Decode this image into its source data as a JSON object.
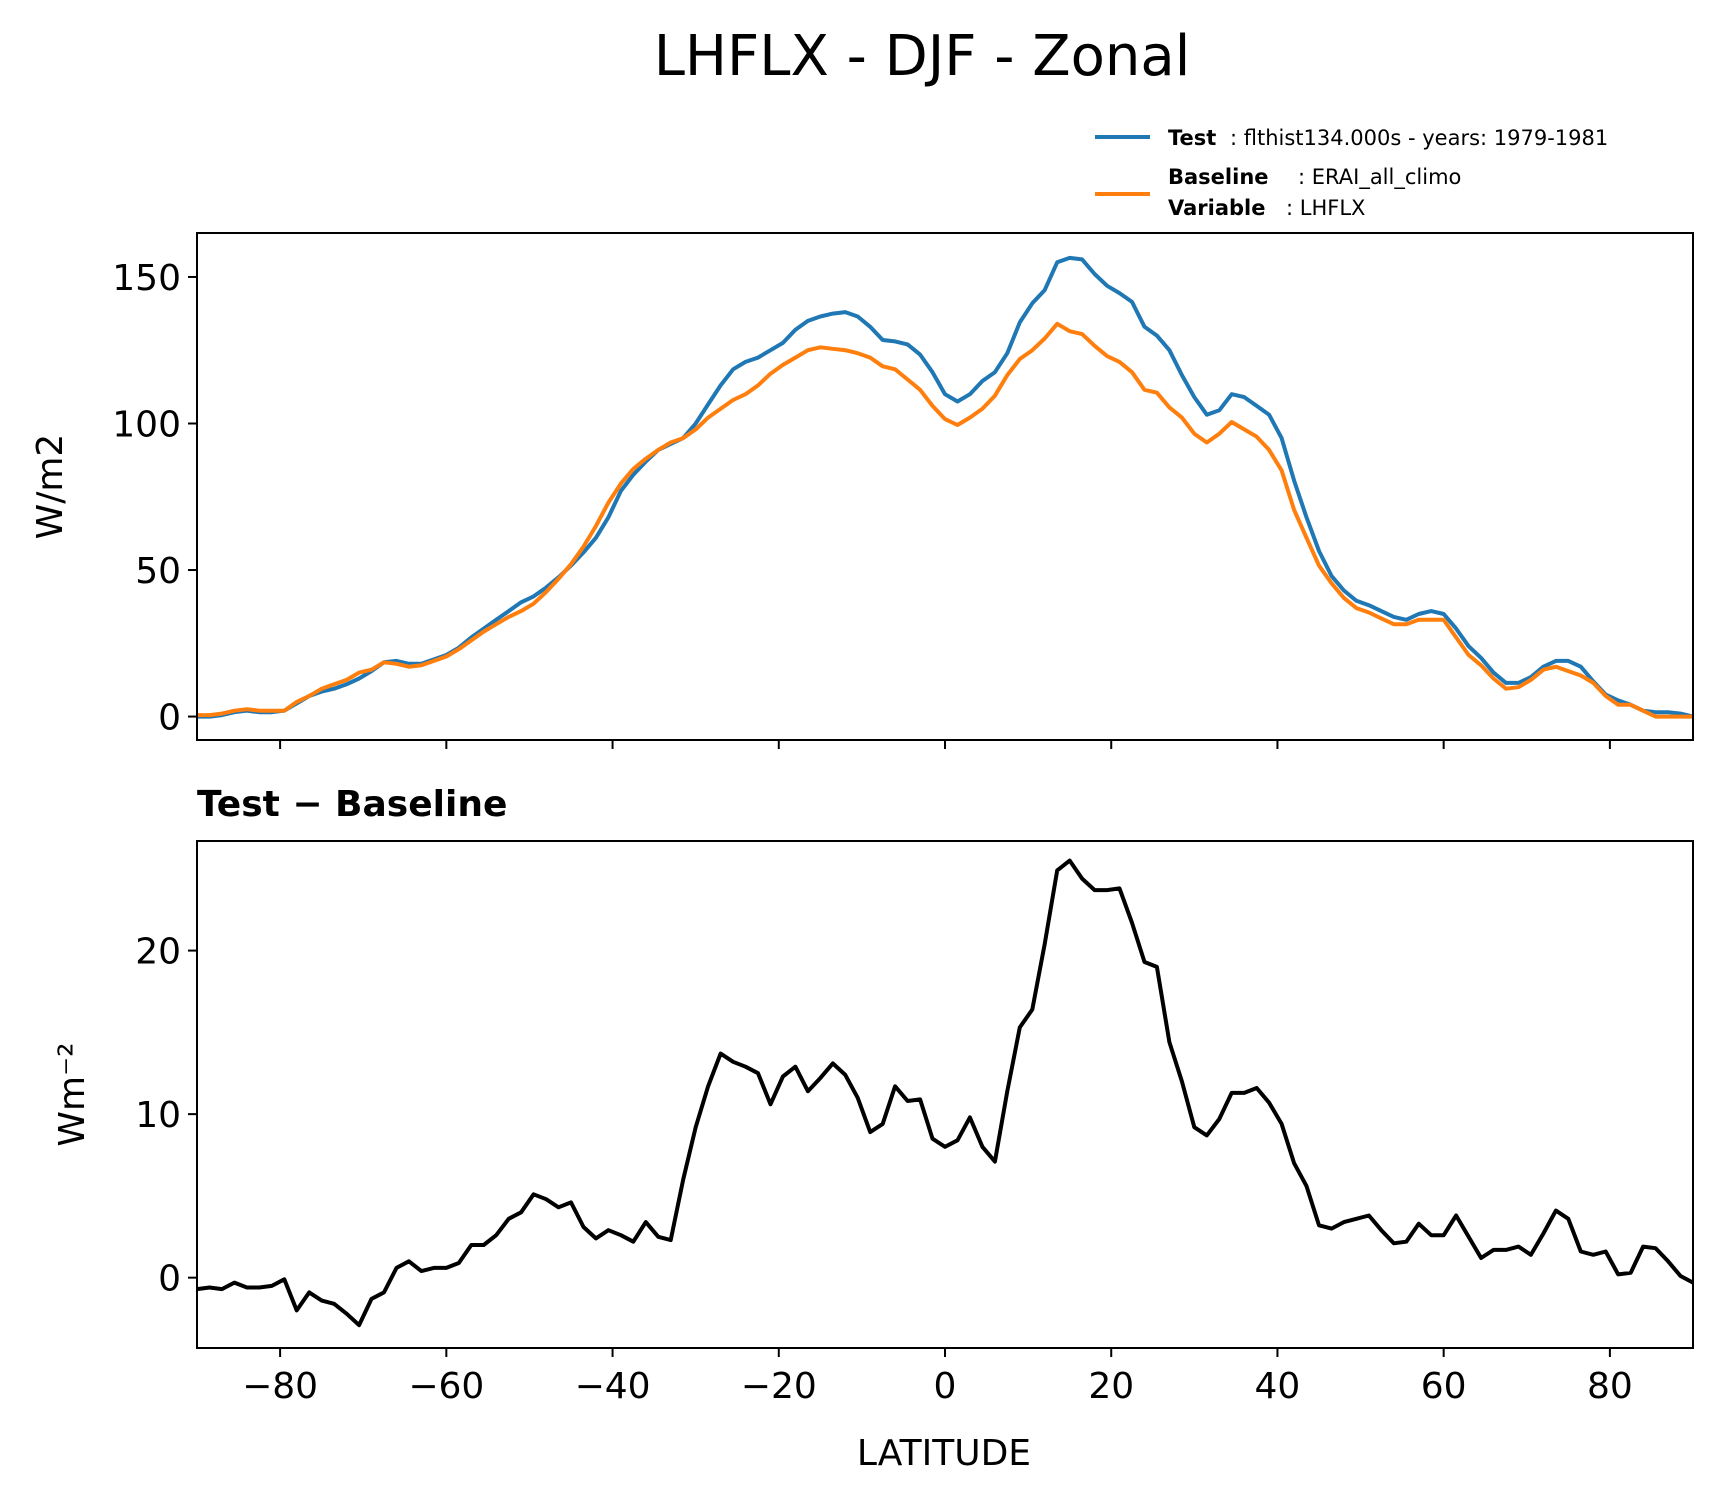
{
  "figure_title": "LHFLX - DJF - Zonal",
  "legend": [
    {
      "label": "Test",
      "text": ": flthist134.000s - years: 1979-1981",
      "color": "#1f77b4"
    },
    {
      "label": "Baseline",
      "text": ": ERAI_all_climo",
      "color": "#ff7f0e"
    },
    {
      "label": "Variable",
      "text": ": LHFLX"
    }
  ],
  "chart_data": [
    {
      "type": "line",
      "xlim": [
        -90,
        90
      ],
      "ylim": [
        -8,
        165
      ],
      "ylabel": "W/m2",
      "yticks": [
        0,
        50,
        100,
        150
      ],
      "xticks": [
        -80,
        -60,
        -40,
        -20,
        0,
        20,
        40,
        60,
        80
      ],
      "x": [
        -90.0,
        -88.5,
        -87.0,
        -85.5,
        -84.0,
        -82.5,
        -81.0,
        -79.5,
        -78.0,
        -76.5,
        -75.0,
        -73.5,
        -72.0,
        -70.5,
        -69.0,
        -67.5,
        -66.0,
        -64.5,
        -63.0,
        -61.5,
        -60.0,
        -58.5,
        -57.0,
        -55.5,
        -54.0,
        -52.5,
        -51.0,
        -49.5,
        -48.0,
        -46.5,
        -45.0,
        -43.5,
        -42.0,
        -40.5,
        -39.0,
        -37.5,
        -36.0,
        -34.5,
        -33.0,
        -31.5,
        -30.0,
        -28.5,
        -27.0,
        -25.5,
        -24.0,
        -22.5,
        -21.0,
        -19.5,
        -18.0,
        -16.5,
        -15.0,
        -13.5,
        -12.0,
        -10.5,
        -9.0,
        -7.5,
        -6.0,
        -4.5,
        -3.0,
        -1.5,
        0.0,
        1.5,
        3.0,
        4.5,
        6.0,
        7.5,
        9.0,
        10.5,
        12.0,
        13.5,
        15.0,
        16.5,
        18.0,
        19.5,
        21.0,
        22.5,
        24.0,
        25.5,
        27.0,
        28.5,
        30.0,
        31.5,
        33.0,
        34.5,
        36.0,
        37.5,
        39.0,
        40.5,
        42.0,
        43.5,
        45.0,
        46.5,
        48.0,
        49.5,
        51.0,
        52.5,
        54.0,
        55.5,
        57.0,
        58.5,
        60.0,
        61.5,
        63.0,
        64.5,
        66.0,
        67.5,
        69.0,
        70.5,
        72.0,
        73.5,
        75.0,
        76.5,
        78.0,
        79.5,
        81.0,
        82.5,
        84.0,
        85.5,
        87.0,
        88.5,
        90.0
      ],
      "series": [
        {
          "name": "Test",
          "color": "#1f77b4",
          "values": [
            0.0,
            0.0,
            0.5,
            1.5,
            2.0,
            1.5,
            1.5,
            2.0,
            4.5,
            7.0,
            8.5,
            9.5,
            11.0,
            13.0,
            15.5,
            18.5,
            19.0,
            18.0,
            18.0,
            19.5,
            21.0,
            23.5,
            27.0,
            30.0,
            33.0,
            36.0,
            39.0,
            41.0,
            44.0,
            47.5,
            51.5,
            56.0,
            61.0,
            68.0,
            77.0,
            82.5,
            87.0,
            91.0,
            93.0,
            95.0,
            100.0,
            106.5,
            113.0,
            118.5,
            121.0,
            122.5,
            125.0,
            127.5,
            132.0,
            135.0,
            136.5,
            137.5,
            138.0,
            136.5,
            133.0,
            128.5,
            128.0,
            127.0,
            123.5,
            117.5,
            110.0,
            107.5,
            110.0,
            114.5,
            117.5,
            124.0,
            134.5,
            141.0,
            145.5,
            155.0,
            156.5,
            156.0,
            151.0,
            147.0,
            144.5,
            141.5,
            133.0,
            130.0,
            125.0,
            116.5,
            109.0,
            103.0,
            104.5,
            110.0,
            109.0,
            106.0,
            103.0,
            95.0,
            80.5,
            68.0,
            56.5,
            48.0,
            43.0,
            39.5,
            38.0,
            36.0,
            34.0,
            33.0,
            35.0,
            36.0,
            35.0,
            30.0,
            24.0,
            20.0,
            15.0,
            11.5,
            11.5,
            13.5,
            17.0,
            19.0,
            19.0,
            17.0,
            12.0,
            7.5,
            5.5,
            4.0,
            2.0,
            1.5,
            1.5,
            1.0,
            0.0
          ]
        },
        {
          "name": "Baseline",
          "color": "#ff7f0e",
          "values": [
            0.5,
            0.5,
            1.0,
            2.0,
            2.5,
            2.0,
            2.0,
            2.0,
            5.0,
            7.0,
            9.5,
            11.0,
            12.5,
            15.0,
            16.0,
            18.5,
            18.0,
            17.0,
            17.5,
            19.0,
            20.5,
            23.0,
            26.0,
            29.0,
            31.5,
            34.0,
            36.0,
            38.5,
            42.5,
            47.0,
            52.0,
            58.0,
            65.0,
            73.0,
            79.5,
            84.5,
            88.0,
            91.0,
            93.5,
            95.0,
            98.0,
            102.0,
            105.0,
            108.0,
            110.0,
            113.0,
            117.0,
            120.0,
            122.5,
            125.0,
            126.0,
            125.5,
            125.0,
            124.0,
            122.5,
            119.5,
            118.5,
            115.0,
            111.5,
            106.0,
            101.5,
            99.5,
            102.0,
            105.0,
            109.5,
            116.5,
            122.0,
            125.0,
            129.0,
            134.0,
            131.5,
            130.5,
            126.5,
            123.0,
            121.0,
            117.5,
            111.5,
            110.5,
            105.5,
            102.0,
            96.5,
            93.5,
            96.5,
            100.5,
            98.0,
            95.5,
            91.0,
            84.0,
            70.5,
            61.0,
            51.5,
            45.5,
            40.5,
            37.0,
            35.5,
            33.5,
            31.5,
            31.5,
            33.0,
            33.0,
            33.0,
            27.0,
            21.0,
            17.5,
            13.0,
            9.5,
            10.0,
            12.5,
            16.0,
            17.0,
            15.5,
            14.0,
            11.5,
            7.0,
            4.0,
            4.0,
            2.0,
            0.0,
            0.0,
            0.0,
            0.0
          ]
        }
      ]
    },
    {
      "type": "line",
      "title": "Test − Baseline",
      "xlim": [
        -90,
        90
      ],
      "ylim": [
        -4.3,
        26.7
      ],
      "xlabel": "LATITUDE",
      "ylabel": "Wm⁻²",
      "yticks": [
        0,
        10,
        20
      ],
      "xticks": [
        -80,
        -60,
        -40,
        -20,
        0,
        20,
        40,
        60,
        80
      ],
      "xtick_labels": [
        "−80",
        "−60",
        "−40",
        "−20",
        "0",
        "20",
        "40",
        "60",
        "80"
      ],
      "x": [
        -90.0,
        -88.5,
        -87.0,
        -85.5,
        -84.0,
        -82.5,
        -81.0,
        -79.5,
        -78.0,
        -76.5,
        -75.0,
        -73.5,
        -72.0,
        -70.5,
        -69.0,
        -67.5,
        -66.0,
        -64.5,
        -63.0,
        -61.5,
        -60.0,
        -58.5,
        -57.0,
        -55.5,
        -54.0,
        -52.5,
        -51.0,
        -49.5,
        -48.0,
        -46.5,
        -45.0,
        -43.5,
        -42.0,
        -40.5,
        -39.0,
        -37.5,
        -36.0,
        -34.5,
        -33.0,
        -31.5,
        -30.0,
        -28.5,
        -27.0,
        -25.5,
        -24.0,
        -22.5,
        -21.0,
        -19.5,
        -18.0,
        -16.5,
        -15.0,
        -13.5,
        -12.0,
        -10.5,
        -9.0,
        -7.5,
        -6.0,
        -4.5,
        -3.0,
        -1.5,
        0.0,
        1.5,
        3.0,
        4.5,
        6.0,
        7.5,
        9.0,
        10.5,
        12.0,
        13.5,
        15.0,
        16.5,
        18.0,
        19.5,
        21.0,
        22.5,
        24.0,
        25.5,
        27.0,
        28.5,
        30.0,
        31.5,
        33.0,
        34.5,
        36.0,
        37.5,
        39.0,
        40.5,
        42.0,
        43.5,
        45.0,
        46.5,
        48.0,
        49.5,
        51.0,
        52.5,
        54.0,
        55.5,
        57.0,
        58.5,
        60.0,
        61.5,
        63.0,
        64.5,
        66.0,
        67.5,
        69.0,
        70.5,
        72.0,
        73.5,
        75.0,
        76.5,
        78.0,
        79.5,
        81.0,
        82.5,
        84.0,
        85.5,
        87.0,
        88.5,
        90.0
      ],
      "series": [
        {
          "name": "Test − Baseline",
          "color": "#000000",
          "values": [
            -0.7,
            -0.6,
            -0.7,
            -0.3,
            -0.6,
            -0.6,
            -0.5,
            -0.1,
            -2.0,
            -0.9,
            -1.4,
            -1.6,
            -2.2,
            -2.9,
            -1.3,
            -0.9,
            0.6,
            1.0,
            0.4,
            0.6,
            0.6,
            0.9,
            2.0,
            2.0,
            2.6,
            3.6,
            4.0,
            5.1,
            4.8,
            4.3,
            4.6,
            3.1,
            2.4,
            2.9,
            2.6,
            2.2,
            3.4,
            2.5,
            2.3,
            6.0,
            9.2,
            11.7,
            13.7,
            13.2,
            12.9,
            12.5,
            10.6,
            12.3,
            12.9,
            11.4,
            12.2,
            13.1,
            12.4,
            11.0,
            8.9,
            9.4,
            11.7,
            10.8,
            10.9,
            8.5,
            8.0,
            8.4,
            9.8,
            8.0,
            7.1,
            11.4,
            15.3,
            16.4,
            20.4,
            24.9,
            25.5,
            24.4,
            23.7,
            23.7,
            23.8,
            21.7,
            19.3,
            19.0,
            14.4,
            12.0,
            9.2,
            8.7,
            9.7,
            11.3,
            11.3,
            11.6,
            10.7,
            9.4,
            7.0,
            5.6,
            3.2,
            3.0,
            3.4,
            3.6,
            3.8,
            2.9,
            2.1,
            2.2,
            3.3,
            2.6,
            2.6,
            3.8,
            2.5,
            1.2,
            1.7,
            1.7,
            1.9,
            1.4,
            2.7,
            4.1,
            3.6,
            1.6,
            1.4,
            1.6,
            0.2,
            0.3,
            1.9,
            1.8,
            1.0,
            0.1,
            -0.3
          ]
        }
      ]
    }
  ]
}
